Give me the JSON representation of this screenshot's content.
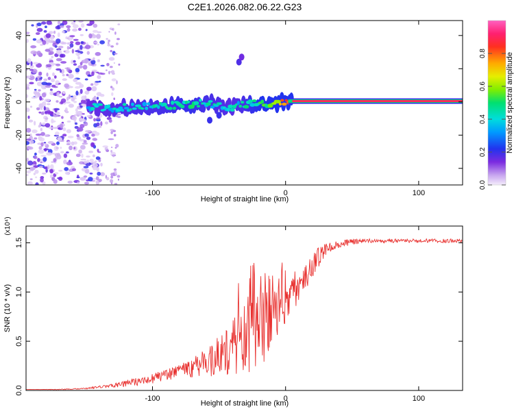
{
  "title": "C2E1.2026.082.06.22.G23",
  "chart_data": [
    {
      "type": "heatmap",
      "name": "spectrogram",
      "xlabel": "Height of straight line (km)",
      "ylabel": "Frequency (Hz)",
      "xlim": [
        -195,
        133
      ],
      "ylim": [
        -50,
        49
      ],
      "xticks": [
        -100,
        0,
        100
      ],
      "yticks": [
        -40,
        -20,
        0,
        20,
        40
      ],
      "colorbar": {
        "label": "Normalized spectral amplitude",
        "range": [
          0.0,
          1.0
        ],
        "ticks": [
          0.0,
          0.2,
          0.4,
          0.6,
          0.8
        ],
        "colors": [
          "#e0d0f5",
          "#7b2be0",
          "#2233ee",
          "#00ccee",
          "#00e070",
          "#80ee00",
          "#eeee00",
          "#ff8800",
          "#ff2020",
          "#ff60b0"
        ]
      },
      "noise_region_km": [
        -195,
        -125
      ],
      "ridge": {
        "x": [
          -148,
          -130,
          -110,
          -90,
          -70,
          -60,
          -50,
          -40,
          -30,
          -20,
          -10,
          0,
          10,
          30,
          60,
          100,
          133
        ],
        "y": [
          -3,
          -3.5,
          -3,
          -2.5,
          -1.5,
          -0.5,
          -2,
          -3,
          -1.5,
          -1,
          -1.5,
          0.5,
          0.5,
          0.5,
          0.5,
          0.5,
          0.5
        ],
        "amplitude": [
          0.35,
          0.38,
          0.4,
          0.42,
          0.45,
          0.42,
          0.4,
          0.38,
          0.42,
          0.48,
          0.55,
          0.8,
          0.88,
          0.92,
          0.95,
          0.95,
          0.95
        ]
      },
      "features": [
        {
          "x": -35,
          "y": 24,
          "amplitude": 0.18
        },
        {
          "x": -33,
          "y": 27,
          "amplitude": 0.15
        },
        {
          "x": -57,
          "y": -11,
          "amplitude": 0.2
        },
        {
          "x": -50,
          "y": -8,
          "amplitude": 0.2
        }
      ]
    },
    {
      "type": "line",
      "name": "snr",
      "xlabel": "Height of straight line (km)",
      "ylabel": "SNR (10 * v/v)",
      "multiplier": "(x10⁴)",
      "xlim": [
        -195,
        133
      ],
      "ylim": [
        0,
        1.67
      ],
      "xticks": [
        -100,
        0,
        100
      ],
      "yticks": [
        0.0,
        0.5,
        1.0,
        1.5
      ],
      "color": "#e8302e",
      "x": [
        -195,
        -170,
        -150,
        -130,
        -115,
        -100,
        -85,
        -70,
        -60,
        -50,
        -40,
        -30,
        -22,
        -15,
        -10,
        -5,
        0,
        5,
        10,
        15,
        20,
        25,
        30,
        40,
        50,
        60,
        80,
        100,
        120,
        133
      ],
      "y": [
        0.01,
        0.01,
        0.02,
        0.05,
        0.08,
        0.12,
        0.17,
        0.23,
        0.28,
        0.36,
        0.43,
        0.53,
        0.6,
        0.67,
        0.72,
        0.8,
        0.9,
        1.0,
        1.08,
        1.18,
        1.28,
        1.36,
        1.42,
        1.48,
        1.51,
        1.52,
        1.52,
        1.52,
        1.52,
        1.52
      ],
      "noise": [
        0.0,
        0.003,
        0.006,
        0.02,
        0.04,
        0.05,
        0.07,
        0.1,
        0.14,
        0.22,
        0.3,
        0.4,
        0.45,
        0.4,
        0.3,
        0.25,
        0.22,
        0.2,
        0.18,
        0.16,
        0.14,
        0.1,
        0.07,
        0.04,
        0.03,
        0.02,
        0.02,
        0.02,
        0.02,
        0.02
      ]
    }
  ]
}
